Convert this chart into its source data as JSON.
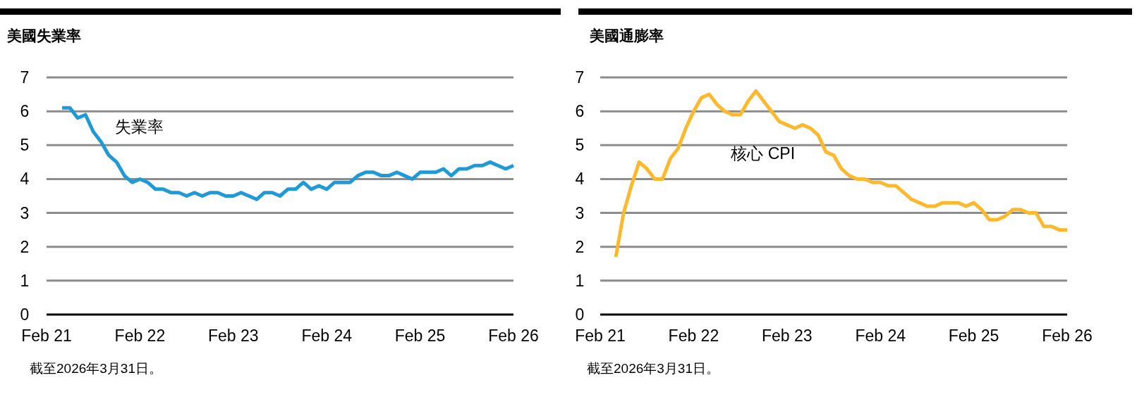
{
  "chart_data": [
    {
      "type": "line",
      "title": "美國失業率",
      "grid": "y",
      "ylim": [
        0,
        7
      ],
      "yticks": [
        0,
        1,
        2,
        3,
        4,
        5,
        6,
        7
      ],
      "xlim": [
        "2021-02",
        "2026-02"
      ],
      "xticks": [
        {
          "value": "2021-02",
          "label": "Feb 21"
        },
        {
          "value": "2022-02",
          "label": "Feb 22"
        },
        {
          "value": "2023-02",
          "label": "Feb 23"
        },
        {
          "value": "2024-02",
          "label": "Feb 24"
        },
        {
          "value": "2025-02",
          "label": "Feb 25"
        },
        {
          "value": "2026-02",
          "label": "Feb 26"
        }
      ],
      "x": [
        "2021-04",
        "2021-05",
        "2021-06",
        "2021-07",
        "2021-08",
        "2021-09",
        "2021-10",
        "2021-11",
        "2021-12",
        "2022-01",
        "2022-02",
        "2022-03",
        "2022-04",
        "2022-05",
        "2022-06",
        "2022-07",
        "2022-08",
        "2022-09",
        "2022-10",
        "2022-11",
        "2022-12",
        "2023-01",
        "2023-02",
        "2023-03",
        "2023-04",
        "2023-05",
        "2023-06",
        "2023-07",
        "2023-08",
        "2023-09",
        "2023-10",
        "2023-11",
        "2023-12",
        "2024-01",
        "2024-02",
        "2024-03",
        "2024-04",
        "2024-05",
        "2024-06",
        "2024-07",
        "2024-08",
        "2024-09",
        "2024-10",
        "2024-11",
        "2024-12",
        "2025-01",
        "2025-02",
        "2025-03",
        "2025-04",
        "2025-05",
        "2025-06",
        "2025-07",
        "2025-08",
        "2025-09",
        "2025-10",
        "2025-11",
        "2025-12",
        "2026-01",
        "2026-02"
      ],
      "series": [
        {
          "name": "失業率",
          "color": "#1f9ad6",
          "values": [
            6.1,
            6.1,
            5.8,
            5.9,
            5.4,
            5.1,
            4.7,
            4.5,
            4.1,
            3.9,
            4.0,
            3.9,
            3.7,
            3.7,
            3.6,
            3.6,
            3.5,
            3.6,
            3.5,
            3.6,
            3.6,
            3.5,
            3.5,
            3.6,
            3.5,
            3.4,
            3.6,
            3.6,
            3.5,
            3.7,
            3.7,
            3.9,
            3.7,
            3.8,
            3.7,
            3.9,
            3.9,
            3.9,
            4.1,
            4.2,
            4.2,
            4.1,
            4.1,
            4.2,
            4.1,
            4.0,
            4.2,
            4.2,
            4.2,
            4.3,
            4.1,
            4.3,
            4.3,
            4.4,
            4.4,
            4.5,
            4.4,
            4.3,
            4.4
          ]
        }
      ],
      "annotations": [
        "截至2026年3月31日。"
      ]
    },
    {
      "type": "line",
      "title": "美國通膨率",
      "grid": "y",
      "ylim": [
        0,
        7
      ],
      "yticks": [
        0,
        1,
        2,
        3,
        4,
        5,
        6,
        7
      ],
      "xlim": [
        "2021-02",
        "2026-02"
      ],
      "xticks": [
        {
          "value": "2021-02",
          "label": "Feb 21"
        },
        {
          "value": "2022-02",
          "label": "Feb 22"
        },
        {
          "value": "2023-02",
          "label": "Feb 23"
        },
        {
          "value": "2024-02",
          "label": "Feb 24"
        },
        {
          "value": "2025-02",
          "label": "Feb 25"
        },
        {
          "value": "2026-02",
          "label": "Feb 26"
        }
      ],
      "x": [
        "2021-04",
        "2021-05",
        "2021-06",
        "2021-07",
        "2021-08",
        "2021-09",
        "2021-10",
        "2021-11",
        "2021-12",
        "2022-01",
        "2022-02",
        "2022-03",
        "2022-04",
        "2022-05",
        "2022-06",
        "2022-07",
        "2022-08",
        "2022-09",
        "2022-10",
        "2022-11",
        "2022-12",
        "2023-01",
        "2023-02",
        "2023-03",
        "2023-04",
        "2023-05",
        "2023-06",
        "2023-07",
        "2023-08",
        "2023-09",
        "2023-10",
        "2023-11",
        "2023-12",
        "2024-01",
        "2024-02",
        "2024-03",
        "2024-04",
        "2024-05",
        "2024-06",
        "2024-07",
        "2024-08",
        "2024-09",
        "2024-10",
        "2024-11",
        "2024-12",
        "2025-01",
        "2025-02",
        "2025-03",
        "2025-04",
        "2025-05",
        "2025-06",
        "2025-07",
        "2025-08",
        "2025-09",
        "2025-10",
        "2025-11",
        "2025-12",
        "2026-01",
        "2026-02"
      ],
      "series": [
        {
          "name": "核心 CPI",
          "color": "#fdb92d",
          "values": [
            1.7,
            3.0,
            3.8,
            4.5,
            4.3,
            4.0,
            4.0,
            4.6,
            4.9,
            5.5,
            6.0,
            6.4,
            6.5,
            6.2,
            6.0,
            5.9,
            5.9,
            6.3,
            6.6,
            6.3,
            6.0,
            5.7,
            5.6,
            5.5,
            5.6,
            5.5,
            5.3,
            4.8,
            4.7,
            4.3,
            4.1,
            4.0,
            4.0,
            3.9,
            3.9,
            3.8,
            3.8,
            3.6,
            3.4,
            3.3,
            3.2,
            3.2,
            3.3,
            3.3,
            3.3,
            3.2,
            3.3,
            3.1,
            2.8,
            2.8,
            2.9,
            3.1,
            3.1,
            3.0,
            3.0,
            2.6,
            2.6,
            2.5,
            2.5
          ]
        }
      ],
      "annotations": [
        "截至2026年3月31日。"
      ]
    }
  ]
}
